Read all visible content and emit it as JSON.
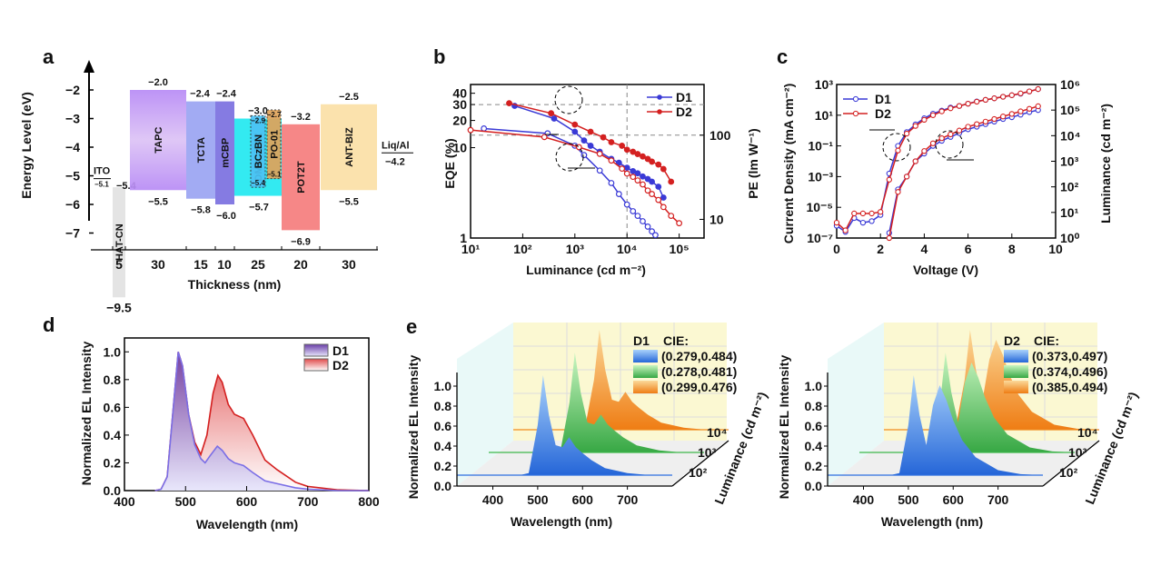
{
  "chart_data": [
    {
      "panel": "a",
      "type": "bar",
      "title": "",
      "ylabel": "Energy Level (eV)",
      "xlabel": "Thickness (nm)",
      "ylim": [
        -7,
        -2
      ],
      "yticks": [
        "−2",
        "−3",
        "−4",
        "−5",
        "−6",
        "−7"
      ],
      "xticks": [
        "5",
        "30",
        "15",
        "10",
        "25",
        "20",
        "30"
      ],
      "electrodes": [
        {
          "name": "ITO",
          "value": "−5.1"
        },
        {
          "name": "Liq/Al",
          "value": "−4.2"
        }
      ],
      "layers": [
        {
          "name": "HAT-CN",
          "thickness": 5,
          "lumo": -5.4,
          "homo": -9.5,
          "lumo_label": "−5.4",
          "homo_label": "−9.5",
          "color": "#d9d9d9"
        },
        {
          "name": "TAPC",
          "thickness": 30,
          "lumo": -2.0,
          "homo": -5.5,
          "lumo_label": "−2.0",
          "homo_label": "−5.5",
          "color": "#c084f0"
        },
        {
          "name": "TCTA",
          "thickness": 15,
          "lumo": -2.4,
          "homo": -5.8,
          "lumo_label": "−2.4",
          "homo_label": "−5.8",
          "color": "#9aa4f2"
        },
        {
          "name": "mCBP",
          "thickness": 10,
          "lumo": -2.4,
          "homo": -6.0,
          "lumo_label": "−2.4",
          "homo_label": "−6.0",
          "color": "#7b70e0"
        },
        {
          "name": "DMIC-TRZ",
          "thickness": 25,
          "lumo": -3.0,
          "homo": -5.7,
          "lumo_label": "−3.0",
          "homo_label": "−5.7",
          "color": "#22e8f0"
        },
        {
          "name": "BCzBN",
          "dopant": true,
          "lumo": -2.9,
          "homo": -5.4,
          "lumo_label": "−2.9",
          "homo_label": "−5.4",
          "color": "#4cc2f5"
        },
        {
          "name": "PO-01",
          "dopant": true,
          "lumo": -2.7,
          "homo": -5.1,
          "lumo_label": "−2.7",
          "homo_label": "−5.1",
          "color": "#e0a35a"
        },
        {
          "name": "POT2T",
          "thickness": 20,
          "lumo": -3.2,
          "homo": -6.9,
          "lumo_label": "−3.2",
          "homo_label": "−6.9",
          "color": "#f57d7d"
        },
        {
          "name": "ANT-BIZ",
          "thickness": 30,
          "lumo": -2.5,
          "homo": -5.5,
          "lumo_label": "−2.5",
          "homo_label": "−5.5",
          "color": "#fbe0a6"
        }
      ]
    },
    {
      "panel": "b",
      "type": "line",
      "xlabel": "Luminance (cd m⁻²)",
      "ylabel": "EQE (%)",
      "y2label": "PE (lm W⁻¹)",
      "xscale": "log",
      "yscale": "log",
      "xlim": [
        10,
        300000
      ],
      "ylim": [
        1,
        50
      ],
      "y2lim": [
        6,
        400
      ],
      "xticks": [
        "10¹",
        "10²",
        "10³",
        "10⁴",
        "10⁵"
      ],
      "yticks": [
        "1",
        "10",
        "20",
        "30",
        "40"
      ],
      "y2ticks": [
        "10",
        "100"
      ],
      "legend": [
        "D1",
        "D2"
      ],
      "legend_position": "top-right",
      "series": [
        {
          "name": "D1 EQE",
          "axis": "left",
          "color": "#3a3ad6",
          "x": [
            70,
            400,
            1000,
            1500,
            2000,
            3000,
            5000,
            7000,
            10000,
            13000,
            16000,
            20000,
            25000,
            30000,
            40000,
            50000
          ],
          "y": [
            29,
            21,
            15,
            12,
            10.5,
            9,
            7.5,
            6.8,
            6,
            5.5,
            5.2,
            4.8,
            4.5,
            4.2,
            3.7,
            2.8
          ]
        },
        {
          "name": "D2 EQE",
          "axis": "left",
          "color": "#d42020",
          "x": [
            55,
            350,
            1000,
            2000,
            3500,
            5000,
            8000,
            10000,
            13000,
            16000,
            20000,
            25000,
            30000,
            40000,
            50000,
            70000
          ],
          "y": [
            31,
            24,
            18,
            15,
            13,
            11.5,
            10.5,
            9.5,
            9,
            8.5,
            8,
            7.5,
            7,
            6.5,
            5.8,
            4.2
          ]
        },
        {
          "name": "D1 PE",
          "axis": "right",
          "color": "#3a3ad6",
          "x": [
            18,
            300,
            1000,
            1500,
            3000,
            5000,
            7000,
            10000,
            13000,
            16000,
            20000,
            25000,
            30000,
            35000
          ],
          "y": [
            120,
            105,
            75,
            58,
            38,
            27,
            20,
            15,
            12.5,
            11,
            9.5,
            8.2,
            7.2,
            6.5
          ]
        },
        {
          "name": "D2 PE",
          "axis": "right",
          "color": "#d42020",
          "x": [
            10,
            260,
            1200,
            3000,
            5000,
            8000,
            10000,
            13000,
            16000,
            20000,
            25000,
            30000,
            40000,
            50000,
            70000,
            100000
          ],
          "y": [
            115,
            95,
            72,
            60,
            50,
            40,
            35,
            32,
            29,
            26,
            22,
            20,
            17,
            14,
            11,
            9
          ]
        }
      ]
    },
    {
      "panel": "c",
      "type": "line",
      "xlabel": "Voltage (V)",
      "ylabel": "Current Density (mA cm⁻²)",
      "y2label": "Luminance (cd m⁻²)",
      "xlim": [
        0,
        10
      ],
      "ylim_exp": [
        -7,
        3
      ],
      "y2lim_exp": [
        0,
        6
      ],
      "xticks": [
        "0",
        "2",
        "4",
        "6",
        "8",
        "10"
      ],
      "yticks": [
        "10⁻⁷",
        "10⁻⁵",
        "10⁻³",
        "10⁻¹",
        "10¹",
        "10³"
      ],
      "y2ticks": [
        "10⁰",
        "10¹",
        "10²",
        "10³",
        "10⁴",
        "10⁵",
        "10⁶"
      ],
      "legend": [
        "D1",
        "D2"
      ],
      "legend_position": "top-left",
      "series": [
        {
          "name": "D1 J",
          "axis": "left",
          "color": "#3a3ad6",
          "x": [
            0,
            0.4,
            0.8,
            1.2,
            1.6,
            2.0,
            2.4,
            2.8,
            3.2,
            3.6,
            4.0,
            4.4,
            4.8,
            5.2,
            5.6,
            6.0,
            6.4,
            6.8,
            7.2,
            7.6,
            8.0,
            8.4,
            8.8,
            9.2
          ],
          "log10y": [
            -6.2,
            -6.6,
            -5.7,
            -6.0,
            -5.9,
            -5.5,
            -2.8,
            -1.0,
            -0.1,
            0.4,
            0.8,
            1.1,
            1.3,
            1.5,
            1.6,
            1.75,
            1.9,
            2.0,
            2.1,
            2.2,
            2.3,
            2.4,
            2.55,
            2.7
          ]
        },
        {
          "name": "D2 J",
          "axis": "left",
          "color": "#d42020",
          "x": [
            0,
            0.4,
            0.8,
            1.2,
            1.6,
            2.0,
            2.4,
            2.8,
            3.2,
            3.6,
            4.0,
            4.4,
            4.8,
            5.2,
            5.6,
            6.0,
            6.4,
            6.8,
            7.2,
            7.6,
            8.0,
            8.4,
            8.8,
            9.2
          ],
          "log10y": [
            -6.0,
            -6.5,
            -5.4,
            -5.4,
            -5.4,
            -5.3,
            -3.2,
            -1.3,
            -0.2,
            0.3,
            0.7,
            1.0,
            1.25,
            1.45,
            1.6,
            1.75,
            1.88,
            2.0,
            2.1,
            2.2,
            2.3,
            2.42,
            2.55,
            2.7
          ]
        },
        {
          "name": "D1 L",
          "axis": "right",
          "color": "#3a3ad6",
          "x": [
            2.4,
            2.8,
            3.2,
            3.6,
            4.0,
            4.4,
            4.8,
            5.2,
            5.6,
            6.0,
            6.4,
            6.8,
            7.2,
            7.6,
            8.0,
            8.4,
            8.8,
            9.2
          ],
          "log10y": [
            0.2,
            1.9,
            2.4,
            3.0,
            3.3,
            3.6,
            3.8,
            3.95,
            4.1,
            4.25,
            4.35,
            4.45,
            4.55,
            4.65,
            4.72,
            4.82,
            4.92,
            5.0
          ]
        },
        {
          "name": "D2 L",
          "axis": "right",
          "color": "#d42020",
          "x": [
            2.4,
            2.8,
            3.2,
            3.6,
            4.0,
            4.4,
            4.8,
            5.2,
            5.6,
            6.0,
            6.4,
            6.8,
            7.2,
            7.6,
            8.0,
            8.4,
            8.8,
            9.2
          ],
          "log10y": [
            0,
            1.8,
            2.4,
            3.0,
            3.4,
            3.7,
            3.9,
            4.05,
            4.2,
            4.35,
            4.45,
            4.55,
            4.65,
            4.75,
            4.85,
            4.95,
            5.05,
            5.15
          ]
        }
      ]
    },
    {
      "panel": "d",
      "type": "area",
      "xlabel": "Wavelength (nm)",
      "ylabel": "Normalized EL Intensity",
      "xlim": [
        400,
        800
      ],
      "ylim": [
        0,
        1.1
      ],
      "xticks": [
        "400",
        "500",
        "600",
        "700",
        "800"
      ],
      "yticks": [
        "0.0",
        "0.2",
        "0.4",
        "0.6",
        "0.8",
        "1.0"
      ],
      "legend": [
        "D1",
        "D2"
      ],
      "legend_position": "top-right",
      "series": [
        {
          "name": "D1",
          "color": "#7a6ee6",
          "x": [
            450,
            460,
            470,
            480,
            488,
            495,
            505,
            515,
            525,
            532,
            540,
            552,
            560,
            570,
            580,
            595,
            610,
            630,
            650,
            680,
            700,
            750,
            800
          ],
          "y": [
            0,
            0.01,
            0.1,
            0.6,
            1.0,
            0.9,
            0.55,
            0.33,
            0.23,
            0.2,
            0.25,
            0.32,
            0.29,
            0.23,
            0.2,
            0.18,
            0.13,
            0.07,
            0.05,
            0.02,
            0.01,
            0,
            0
          ]
        },
        {
          "name": "D2",
          "color": "#d42020",
          "x": [
            450,
            460,
            470,
            480,
            488,
            495,
            505,
            515,
            525,
            535,
            545,
            553,
            560,
            570,
            580,
            595,
            610,
            630,
            650,
            680,
            700,
            750,
            800
          ],
          "y": [
            0,
            0.01,
            0.1,
            0.6,
            1.0,
            0.9,
            0.55,
            0.35,
            0.26,
            0.4,
            0.7,
            0.83,
            0.78,
            0.62,
            0.55,
            0.52,
            0.4,
            0.22,
            0.15,
            0.06,
            0.03,
            0.005,
            0
          ]
        }
      ]
    },
    {
      "panel": "e-left",
      "type": "area",
      "device": "D1",
      "xlabel": "Wavelength (nm)",
      "ylabel": "Normalized EL Intensity",
      "zlabel": "Luminance (cd m⁻²)",
      "xticks": [
        "400",
        "500",
        "600",
        "700"
      ],
      "yticks": [
        "0.0",
        "0.2",
        "0.4",
        "0.6",
        "0.8",
        "1.0"
      ],
      "zticks": [
        "10²",
        "10³",
        "10⁴"
      ],
      "legend_title": "CIE:",
      "series": [
        {
          "name": "10²",
          "cie": "(0.279,0.484)",
          "color": "#2f6fe0",
          "x": [
            460,
            480,
            500,
            512,
            525,
            540,
            555,
            570,
            585,
            600,
            620,
            650,
            700,
            750,
            800
          ],
          "y": [
            0,
            0.02,
            0.5,
            1.0,
            0.6,
            0.3,
            0.28,
            0.38,
            0.28,
            0.22,
            0.15,
            0.07,
            0.02,
            0,
            0
          ]
        },
        {
          "name": "10³",
          "cie": "(0.278,0.481)",
          "color": "#3fb84a",
          "x": [
            460,
            480,
            500,
            512,
            525,
            540,
            555,
            570,
            585,
            600,
            620,
            650,
            700,
            750,
            800
          ],
          "y": [
            0,
            0.02,
            0.5,
            1.0,
            0.6,
            0.3,
            0.28,
            0.38,
            0.28,
            0.22,
            0.15,
            0.07,
            0.02,
            0,
            0
          ]
        },
        {
          "name": "10⁴",
          "cie": "(0.299,0.476)",
          "color": "#f08a1e",
          "x": [
            460,
            480,
            500,
            512,
            525,
            540,
            555,
            570,
            585,
            600,
            620,
            650,
            700,
            750,
            800
          ],
          "y": [
            0,
            0.02,
            0.5,
            1.0,
            0.6,
            0.3,
            0.28,
            0.38,
            0.28,
            0.22,
            0.15,
            0.07,
            0.02,
            0,
            0
          ]
        }
      ]
    },
    {
      "panel": "e-right",
      "type": "area",
      "device": "D2",
      "xlabel": "Wavelength (nm)",
      "ylabel": "Normalized EL Intensity",
      "zlabel": "Luminance (cd m⁻²)",
      "xticks": [
        "400",
        "500",
        "600",
        "700"
      ],
      "yticks": [
        "0.0",
        "0.2",
        "0.4",
        "0.6",
        "0.8",
        "1.0"
      ],
      "zticks": [
        "10²",
        "10³",
        "10⁴"
      ],
      "legend_title": "CIE:",
      "series": [
        {
          "name": "10²",
          "cie": "(0.373,0.497)",
          "color": "#2f6fe0",
          "x": [
            460,
            480,
            500,
            512,
            525,
            540,
            555,
            570,
            585,
            600,
            620,
            650,
            700,
            750,
            800
          ],
          "y": [
            0,
            0.02,
            0.5,
            1.0,
            0.6,
            0.3,
            0.7,
            0.9,
            0.75,
            0.55,
            0.35,
            0.18,
            0.05,
            0.01,
            0
          ]
        },
        {
          "name": "10³",
          "cie": "(0.374,0.496)",
          "color": "#3fb84a",
          "x": [
            460,
            480,
            500,
            512,
            525,
            540,
            555,
            570,
            585,
            600,
            620,
            650,
            700,
            750,
            800
          ],
          "y": [
            0,
            0.02,
            0.5,
            1.0,
            0.6,
            0.3,
            0.7,
            0.9,
            0.75,
            0.55,
            0.35,
            0.18,
            0.05,
            0.01,
            0
          ]
        },
        {
          "name": "10⁴",
          "cie": "(0.385,0.494)",
          "color": "#f08a1e",
          "x": [
            460,
            480,
            500,
            512,
            525,
            540,
            555,
            570,
            585,
            600,
            620,
            650,
            700,
            750,
            800
          ],
          "y": [
            0,
            0.02,
            0.5,
            1.0,
            0.6,
            0.3,
            0.7,
            0.9,
            0.75,
            0.55,
            0.35,
            0.18,
            0.05,
            0.01,
            0
          ]
        }
      ]
    }
  ],
  "labels": {
    "a": "a",
    "b": "b",
    "c": "c",
    "d": "d",
    "e": "e"
  }
}
